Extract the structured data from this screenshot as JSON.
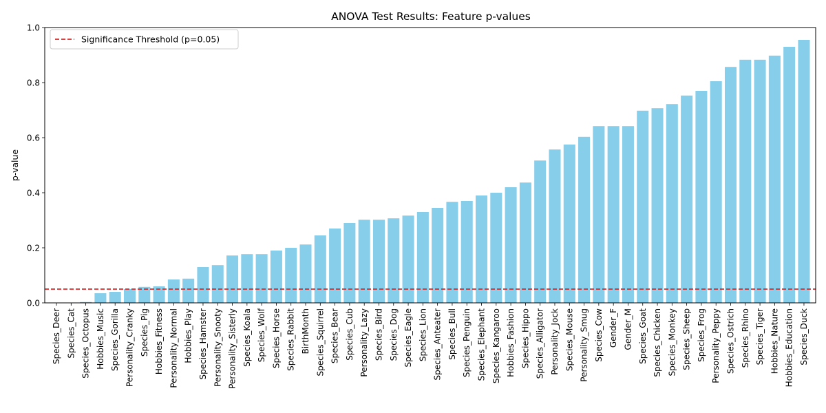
{
  "chart_data": {
    "type": "bar",
    "title": "ANOVA Test Results: Feature p-values",
    "xlabel": "",
    "ylabel": "p-value",
    "ylim": [
      0,
      1.0
    ],
    "yticks": [
      0.0,
      0.2,
      0.4,
      0.6,
      0.8,
      1.0
    ],
    "ytick_labels": [
      "0.0",
      "0.2",
      "0.4",
      "0.6",
      "0.8",
      "1.0"
    ],
    "grid": false,
    "bar_color": "#87CEEB",
    "categories": [
      "Species_Deer",
      "Species_Cat",
      "Species_Octopus",
      "Hobbies_Music",
      "Species_Gorilla",
      "Personality_Cranky",
      "Species_Pig",
      "Hobbies_Fitness",
      "Personality_Normal",
      "Hobbies_Play",
      "Species_Hamster",
      "Personality_Snooty",
      "Personality_Sisterly",
      "Species_Koala",
      "Species_Wolf",
      "Species_Horse",
      "Species_Rabbit",
      "BirthMonth",
      "Species_Squirrel",
      "Species_Bear",
      "Species_Cub",
      "Personality_Lazy",
      "Species_Bird",
      "Species_Dog",
      "Species_Eagle",
      "Species_Lion",
      "Species_Anteater",
      "Species_Bull",
      "Species_Penguin",
      "Species_Elephant",
      "Species_Kangaroo",
      "Hobbies_Fashion",
      "Species_Hippo",
      "Species_Alligator",
      "Personality_Jock",
      "Species_Mouse",
      "Personality_Smug",
      "Species_Cow",
      "Gender_F",
      "Gender_M",
      "Species_Goat",
      "Species_Chicken",
      "Species_Monkey",
      "Species_Sheep",
      "Species_Frog",
      "Personality_Peppy",
      "Species_Ostrich",
      "Species_Rhino",
      "Species_Tiger",
      "Hobbies_Nature",
      "Hobbies_Education",
      "Species_Duck"
    ],
    "values": [
      0.0,
      0.0,
      0.003,
      0.035,
      0.04,
      0.05,
      0.058,
      0.06,
      0.085,
      0.088,
      0.13,
      0.137,
      0.172,
      0.177,
      0.177,
      0.19,
      0.2,
      0.212,
      0.245,
      0.27,
      0.29,
      0.302,
      0.302,
      0.307,
      0.317,
      0.33,
      0.345,
      0.367,
      0.37,
      0.39,
      0.4,
      0.42,
      0.437,
      0.517,
      0.557,
      0.575,
      0.603,
      0.642,
      0.642,
      0.642,
      0.698,
      0.707,
      0.722,
      0.753,
      0.77,
      0.805,
      0.857,
      0.883,
      0.883,
      0.898,
      0.93,
      0.955
    ],
    "threshold": {
      "value": 0.05,
      "color": "#d62728",
      "label": "Significance Threshold (p=0.05)"
    },
    "legend_position": "top-left"
  }
}
